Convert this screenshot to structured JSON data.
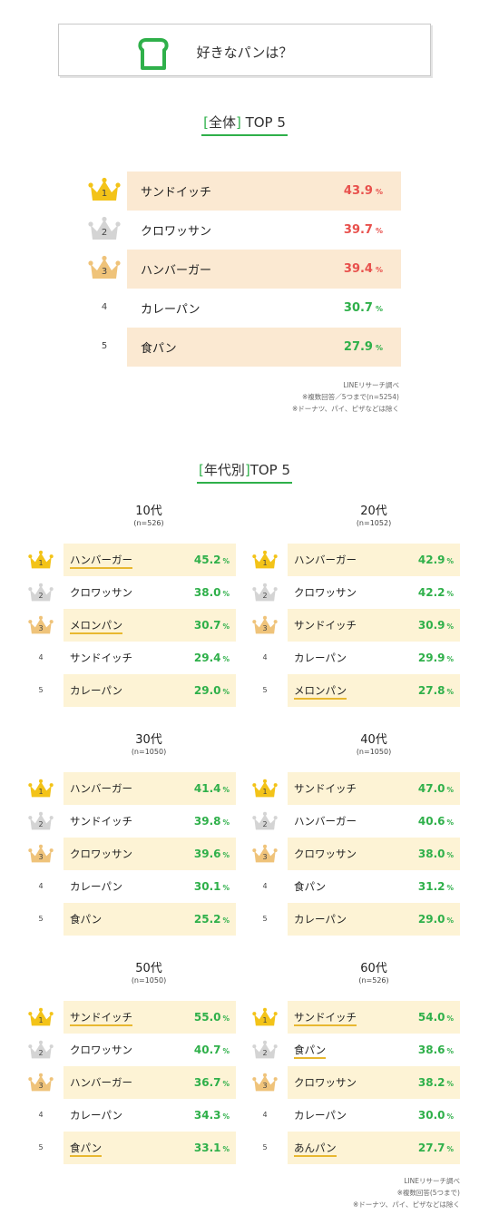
{
  "header": {
    "title": "好きなパンは？"
  },
  "overall": {
    "bracket_open": "[",
    "heading_word": "全体",
    "bracket_close": "]",
    "heading_rest": " TOP 5",
    "rows": [
      {
        "rank": "1",
        "name": "サンドイッチ",
        "pct": "43.9",
        "unit": "%"
      },
      {
        "rank": "2",
        "name": "クロワッサン",
        "pct": "39.7",
        "unit": "%"
      },
      {
        "rank": "3",
        "name": "ハンバーガー",
        "pct": "39.4",
        "unit": "%"
      },
      {
        "rank": "4",
        "name": "カレーパン",
        "pct": "30.7",
        "unit": "%"
      },
      {
        "rank": "5",
        "name": "食パン",
        "pct": "27.9",
        "unit": "%"
      }
    ],
    "notes": [
      "LINEリサーチ調べ",
      "※複数回答／5つまで(n=5254)",
      "※ドーナツ、パイ、ピザなどは除く"
    ]
  },
  "by_age": {
    "bracket_open": "[",
    "heading_word": "年代別",
    "bracket_close": "]",
    "heading_rest": "TOP 5",
    "groups": [
      {
        "age": "10代",
        "n": "(n=526)",
        "rows": [
          {
            "rank": "1",
            "name": "ハンバーガー",
            "pct": "45.2",
            "unit": "%"
          },
          {
            "rank": "2",
            "name": "クロワッサン",
            "pct": "38.0",
            "unit": "%"
          },
          {
            "rank": "3",
            "name": "メロンパン",
            "pct": "30.7",
            "unit": "%"
          },
          {
            "rank": "4",
            "name": "サンドイッチ",
            "pct": "29.4",
            "unit": "%"
          },
          {
            "rank": "5",
            "name": "カレーパン",
            "pct": "29.0",
            "unit": "%"
          }
        ]
      },
      {
        "age": "20代",
        "n": "(n=1052)",
        "rows": [
          {
            "rank": "1",
            "name": "ハンバーガー",
            "pct": "42.9",
            "unit": "%"
          },
          {
            "rank": "2",
            "name": "クロワッサン",
            "pct": "42.2",
            "unit": "%"
          },
          {
            "rank": "3",
            "name": "サンドイッチ",
            "pct": "30.9",
            "unit": "%"
          },
          {
            "rank": "4",
            "name": "カレーパン",
            "pct": "29.9",
            "unit": "%"
          },
          {
            "rank": "5",
            "name": "メロンパン",
            "pct": "27.8",
            "unit": "%"
          }
        ]
      },
      {
        "age": "30代",
        "n": "(n=1050)",
        "rows": [
          {
            "rank": "1",
            "name": "ハンバーガー",
            "pct": "41.4",
            "unit": "%"
          },
          {
            "rank": "2",
            "name": "サンドイッチ",
            "pct": "39.8",
            "unit": "%"
          },
          {
            "rank": "3",
            "name": "クロワッサン",
            "pct": "39.6",
            "unit": "%"
          },
          {
            "rank": "4",
            "name": "カレーパン",
            "pct": "30.1",
            "unit": "%"
          },
          {
            "rank": "5",
            "name": "食パン",
            "pct": "25.2",
            "unit": "%"
          }
        ]
      },
      {
        "age": "40代",
        "n": "(n=1050)",
        "rows": [
          {
            "rank": "1",
            "name": "サンドイッチ",
            "pct": "47.0",
            "unit": "%"
          },
          {
            "rank": "2",
            "name": "ハンバーガー",
            "pct": "40.6",
            "unit": "%"
          },
          {
            "rank": "3",
            "name": "クロワッサン",
            "pct": "38.0",
            "unit": "%"
          },
          {
            "rank": "4",
            "name": "食パン",
            "pct": "31.2",
            "unit": "%"
          },
          {
            "rank": "5",
            "name": "カレーパン",
            "pct": "29.0",
            "unit": "%"
          }
        ]
      },
      {
        "age": "50代",
        "n": "(n=1050)",
        "rows": [
          {
            "rank": "1",
            "name": "サンドイッチ",
            "pct": "55.0",
            "unit": "%"
          },
          {
            "rank": "2",
            "name": "クロワッサン",
            "pct": "40.7",
            "unit": "%"
          },
          {
            "rank": "3",
            "name": "ハンバーガー",
            "pct": "36.7",
            "unit": "%"
          },
          {
            "rank": "4",
            "name": "カレーパン",
            "pct": "34.3",
            "unit": "%"
          },
          {
            "rank": "5",
            "name": "食パン",
            "pct": "33.1",
            "unit": "%"
          }
        ]
      },
      {
        "age": "60代",
        "n": "(n=526)",
        "rows": [
          {
            "rank": "1",
            "name": "サンドイッチ",
            "pct": "54.0",
            "unit": "%"
          },
          {
            "rank": "2",
            "name": "食パン",
            "pct": "38.6",
            "unit": "%"
          },
          {
            "rank": "3",
            "name": "クロワッサン",
            "pct": "38.2",
            "unit": "%"
          },
          {
            "rank": "4",
            "name": "カレーパン",
            "pct": "30.0",
            "unit": "%"
          },
          {
            "rank": "5",
            "name": "あんパン",
            "pct": "27.7",
            "unit": "%"
          }
        ]
      }
    ],
    "notes": [
      "LINEリサーチ調べ",
      "※複数回答(5つまで)",
      "※ドーナツ、パイ、ピザなどは除く"
    ]
  },
  "colors": {
    "green": "#2fb04a",
    "red": "#e8504c",
    "gold": "#f3c318",
    "silver": "#d4d4d4",
    "bronze": "#efc37a",
    "row_peach": "#fbe9d2",
    "row_cream": "#fdf3d5"
  },
  "icons": {
    "header": "bread-slice-icon",
    "rank1": "gold-crown-icon",
    "rank2": "silver-crown-icon",
    "rank3": "bronze-crown-icon"
  }
}
